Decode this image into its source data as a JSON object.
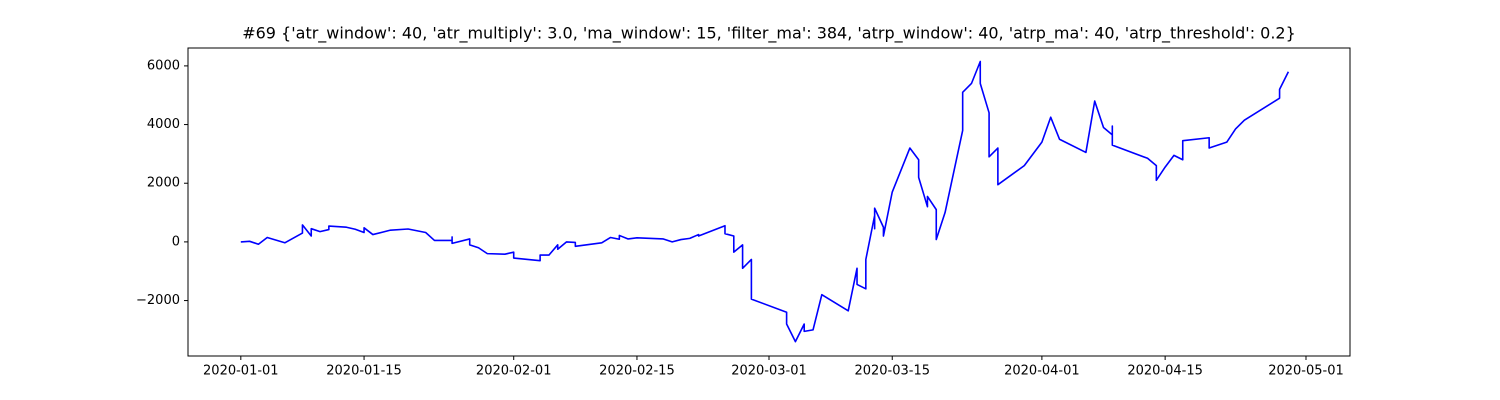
{
  "chart_data": {
    "type": "line",
    "title": "#69 {'atr_window': 40, 'atr_multiply': 3.0, 'ma_window': 15, 'filter_ma': 384, 'atrp_window': 40, 'atrp_ma': 40, 'atrp_threshold': 0.2}",
    "x": [
      "2020-01-01",
      "2020-01-02",
      "2020-01-03",
      "2020-01-04",
      "2020-01-06",
      "2020-01-08",
      "2020-01-08",
      "2020-01-09",
      "2020-01-09",
      "2020-01-10",
      "2020-01-11",
      "2020-01-11",
      "2020-01-13",
      "2020-01-14",
      "2020-01-15",
      "2020-01-15",
      "2020-01-16",
      "2020-01-18",
      "2020-01-20",
      "2020-01-22",
      "2020-01-23",
      "2020-01-25",
      "2020-01-25",
      "2020-01-25",
      "2020-01-27",
      "2020-01-27",
      "2020-01-28",
      "2020-01-29",
      "2020-01-31",
      "2020-02-01",
      "2020-02-01",
      "2020-02-04",
      "2020-02-04",
      "2020-02-05",
      "2020-02-06",
      "2020-02-06",
      "2020-02-07",
      "2020-02-08",
      "2020-02-08",
      "2020-02-11",
      "2020-02-12",
      "2020-02-13",
      "2020-02-13",
      "2020-02-14",
      "2020-02-15",
      "2020-02-18",
      "2020-02-19",
      "2020-02-20",
      "2020-02-21",
      "2020-02-22",
      "2020-02-22",
      "2020-02-25",
      "2020-02-25",
      "2020-02-25",
      "2020-02-26",
      "2020-02-26",
      "2020-02-26",
      "2020-02-27",
      "2020-02-27",
      "2020-02-27",
      "2020-02-28",
      "2020-02-28",
      "2020-02-28",
      "2020-03-03",
      "2020-03-03",
      "2020-03-04",
      "2020-03-05",
      "2020-03-05",
      "2020-03-06",
      "2020-03-07",
      "2020-03-10",
      "2020-03-11",
      "2020-03-11",
      "2020-03-12",
      "2020-03-12",
      "2020-03-12",
      "2020-03-13",
      "2020-03-13",
      "2020-03-13",
      "2020-03-14",
      "2020-03-14",
      "2020-03-15",
      "2020-03-17",
      "2020-03-18",
      "2020-03-18",
      "2020-03-18",
      "2020-03-19",
      "2020-03-19",
      "2020-03-20",
      "2020-03-20",
      "2020-03-21",
      "2020-03-23",
      "2020-03-23",
      "2020-03-24",
      "2020-03-25",
      "2020-03-25",
      "2020-03-25",
      "2020-03-26",
      "2020-03-26",
      "2020-03-26",
      "2020-03-27",
      "2020-03-27",
      "2020-03-30",
      "2020-04-01",
      "2020-04-02",
      "2020-04-03",
      "2020-04-06",
      "2020-04-07",
      "2020-04-08",
      "2020-04-09",
      "2020-04-09",
      "2020-04-09",
      "2020-04-13",
      "2020-04-14",
      "2020-04-14",
      "2020-04-15",
      "2020-04-16",
      "2020-04-17",
      "2020-04-17",
      "2020-04-17",
      "2020-04-20",
      "2020-04-20",
      "2020-04-22",
      "2020-04-23",
      "2020-04-24",
      "2020-04-28",
      "2020-04-28",
      "2020-04-29"
    ],
    "series": [
      {
        "color": "#0000ff",
        "values": [
          0,
          20,
          -80,
          150,
          -30,
          300,
          580,
          200,
          450,
          350,
          420,
          540,
          500,
          430,
          320,
          480,
          250,
          400,
          440,
          320,
          50,
          50,
          170,
          -50,
          100,
          -100,
          -200,
          -400,
          -420,
          -350,
          -550,
          -640,
          -450,
          -450,
          -100,
          -250,
          0,
          -20,
          -150,
          -30,
          150,
          90,
          220,
          100,
          140,
          100,
          0,
          80,
          120,
          250,
          200,
          550,
          350,
          280,
          200,
          -20,
          -350,
          -100,
          -150,
          -900,
          -600,
          -1500,
          -1950,
          -2400,
          -2800,
          -3400,
          -2800,
          -3050,
          -3000,
          -1800,
          -2350,
          -900,
          -1450,
          -1600,
          -1100,
          -600,
          900,
          450,
          1150,
          500,
          200,
          1700,
          3200,
          2800,
          2800,
          2200,
          1200,
          1550,
          1100,
          80,
          1000,
          3800,
          5100,
          5400,
          6150,
          5450,
          5400,
          4400,
          3600,
          2900,
          3200,
          1950,
          2600,
          3400,
          4250,
          3500,
          3050,
          4800,
          3900,
          3650,
          3950,
          3300,
          2850,
          2600,
          2100,
          2550,
          2950,
          2800,
          3100,
          3450,
          3550,
          3200,
          3400,
          3850,
          4150,
          4900,
          5200,
          5800
        ]
      }
    ],
    "xlim": [
      "2019-12-26",
      "2020-05-06"
    ],
    "xticks": [
      "2020-01-01",
      "2020-01-15",
      "2020-02-01",
      "2020-02-15",
      "2020-03-01",
      "2020-03-15",
      "2020-04-01",
      "2020-04-15",
      "2020-05-01"
    ],
    "ylim": [
      -3890,
      6610
    ],
    "yticks": [
      {
        "value": -2000,
        "label": "−2000"
      },
      0,
      2000,
      4000,
      6000
    ]
  }
}
